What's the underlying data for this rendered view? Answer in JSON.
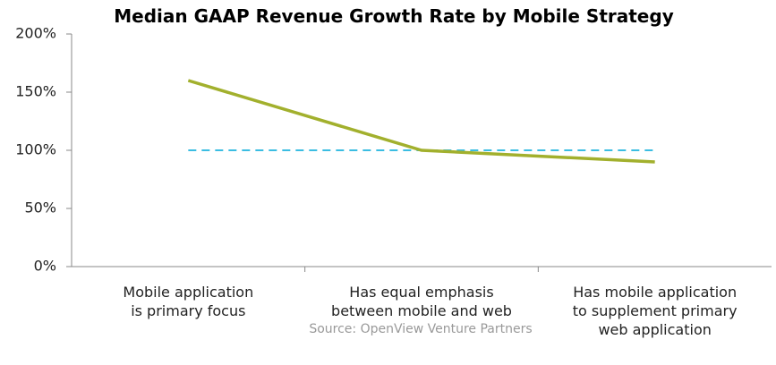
{
  "chart_data": {
    "type": "line",
    "title": "Median GAAP Revenue Growth Rate by Mobile Strategy",
    "source": "Source: OpenView Venture Partners",
    "categories": [
      "Mobile application\nis primary focus",
      "Has equal emphasis\nbetween mobile and web",
      "Has mobile application\nto supplement primary\nweb application"
    ],
    "series": [
      {
        "color": "#a2b02d",
        "values": [
          160,
          100,
          90
        ]
      },
      {
        "color": "#3bbde2",
        "dashed": true,
        "values": [
          100,
          100,
          100
        ]
      }
    ],
    "ylim": [
      0,
      200
    ],
    "yticks": [
      {
        "value": 0,
        "label": "0%"
      },
      {
        "value": 50,
        "label": "50%"
      },
      {
        "value": 100,
        "label": "100%"
      },
      {
        "value": 150,
        "label": "150%"
      },
      {
        "value": 200,
        "label": "200%"
      }
    ],
    "grid": false
  }
}
